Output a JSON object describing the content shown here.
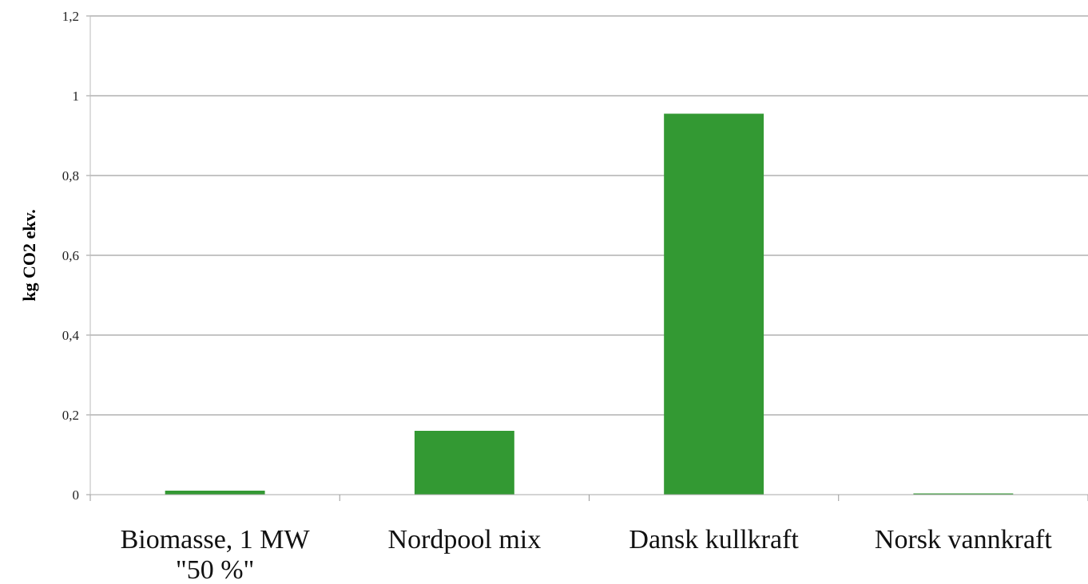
{
  "chart_data": {
    "type": "bar",
    "categories": [
      [
        "Biomasse, 1 MW",
        "\"50 %\""
      ],
      [
        "Nordpool mix"
      ],
      [
        "Dansk kullkraft"
      ],
      [
        "Norsk vannkraft"
      ]
    ],
    "values": [
      0.01,
      0.16,
      0.955,
      0.002
    ],
    "ylabel": "kg CO2 ekv.",
    "ylim": [
      0,
      1.2
    ],
    "yticks": [
      "0",
      "0,2",
      "0,4",
      "0,6",
      "0,8",
      "1",
      "1,2"
    ],
    "grid": true,
    "bar_color": "#339933"
  }
}
